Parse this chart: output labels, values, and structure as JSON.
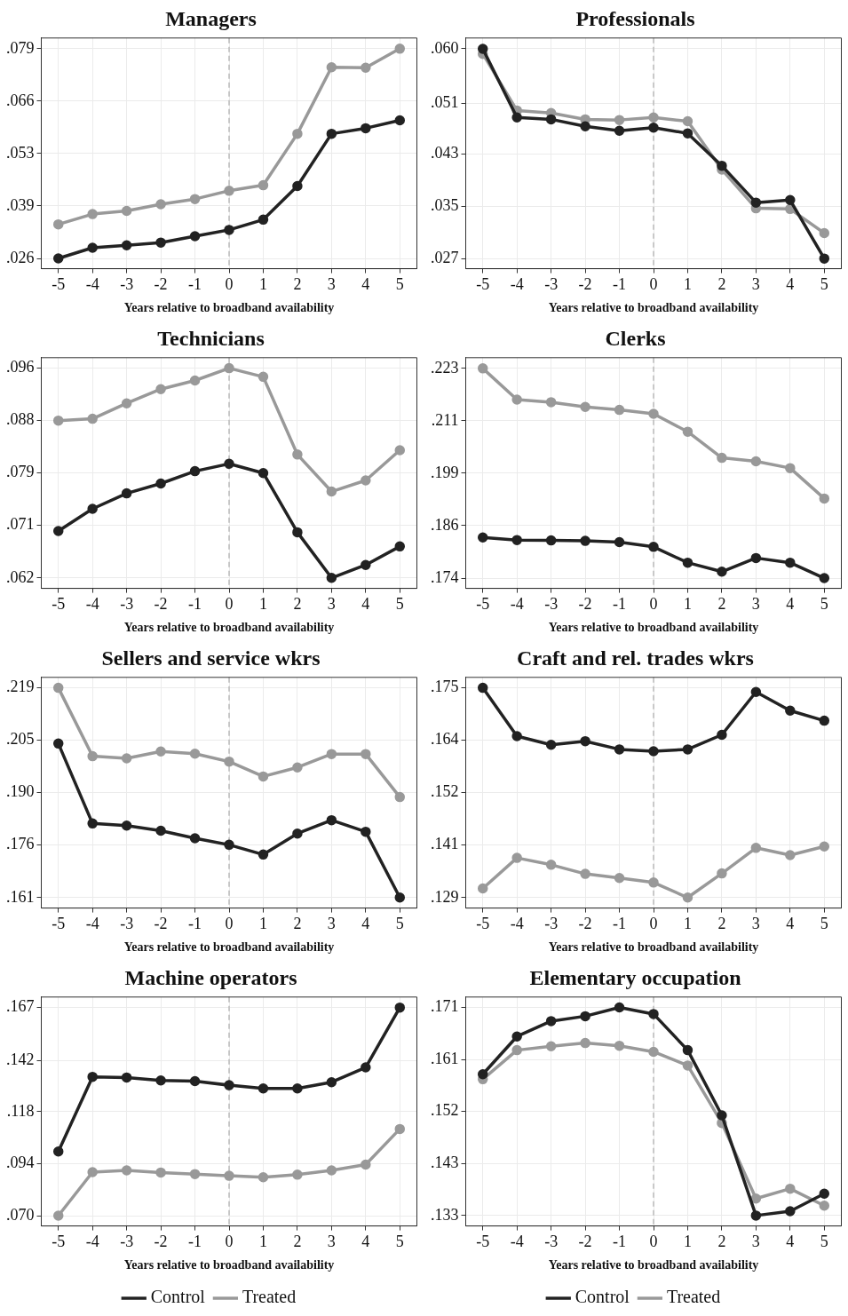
{
  "chart_data": [
    {
      "type": "line",
      "title": "Managers",
      "xlabel": "Years relative to broadband availability",
      "x": [
        -5,
        -4,
        -3,
        -2,
        -1,
        0,
        1,
        2,
        3,
        4,
        5
      ],
      "xlim": [
        -5.5,
        5.5
      ],
      "xticks": [
        -5,
        -4,
        -3,
        -2,
        -1,
        0,
        1,
        2,
        3,
        4,
        5
      ],
      "ylim": [
        0.0234,
        0.0817
      ],
      "yticks": [
        {
          "value": 0.026,
          "label": ".026"
        },
        {
          "value": 0.03925,
          "label": ".039"
        },
        {
          "value": 0.0525,
          "label": ".053"
        },
        {
          "value": 0.06575,
          "label": ".066"
        },
        {
          "value": 0.079,
          "label": ".079"
        }
      ],
      "grid": true,
      "marker": "circle",
      "legend": false,
      "ref_lines": [
        {
          "axis": "x",
          "value": 0,
          "color": "#bbbbbb",
          "line_style": "dashed"
        }
      ],
      "series": [
        {
          "color": "#222222",
          "values": [
            0.026,
            0.0287,
            0.0293,
            0.03,
            0.0316,
            0.0332,
            0.0358,
            0.0443,
            0.0575,
            0.0589,
            0.0609
          ]
        },
        {
          "color": "#999999",
          "values": [
            0.0346,
            0.0372,
            0.038,
            0.0397,
            0.041,
            0.0431,
            0.0445,
            0.0575,
            0.0743,
            0.0742,
            0.079
          ]
        }
      ]
    },
    {
      "type": "line",
      "title": "Professionals",
      "xlabel": "Years relative to broadband availability",
      "x": [
        -5,
        -4,
        -3,
        -2,
        -1,
        0,
        1,
        2,
        3,
        4,
        5
      ],
      "xlim": [
        -5.5,
        5.5
      ],
      "xticks": [
        -5,
        -4,
        -3,
        -2,
        -1,
        0,
        1,
        2,
        3,
        4,
        5
      ],
      "ylim": [
        0.0254,
        0.0617
      ],
      "yticks": [
        {
          "value": 0.027,
          "label": ".027"
        },
        {
          "value": 0.03525,
          "label": ".035"
        },
        {
          "value": 0.0435,
          "label": ".043"
        },
        {
          "value": 0.0514,
          "label": ".051"
        },
        {
          "value": 0.06,
          "label": ".060"
        }
      ],
      "grid": true,
      "marker": "circle",
      "legend": false,
      "ref_lines": [
        {
          "axis": "x",
          "value": 0,
          "color": "#bbbbbb",
          "line_style": "dashed"
        }
      ],
      "series": [
        {
          "color": "#222222",
          "values": [
            0.06,
            0.0492,
            0.0489,
            0.0478,
            0.0471,
            0.0476,
            0.0467,
            0.0416,
            0.0358,
            0.0362,
            0.027
          ]
        },
        {
          "color": "#999999",
          "values": [
            0.0592,
            0.0503,
            0.0499,
            0.0489,
            0.0488,
            0.0492,
            0.0486,
            0.041,
            0.0349,
            0.0348,
            0.031
          ]
        }
      ]
    },
    {
      "type": "line",
      "title": "Technicians",
      "xlabel": "Years relative to broadband availability",
      "x": [
        -5,
        -4,
        -3,
        -2,
        -1,
        0,
        1,
        2,
        3,
        4,
        5
      ],
      "xlim": [
        -5.5,
        5.5
      ],
      "xticks": [
        -5,
        -4,
        -3,
        -2,
        -1,
        0,
        1,
        2,
        3,
        4,
        5
      ],
      "ylim": [
        0.0603,
        0.0977
      ],
      "yticks": [
        {
          "value": 0.062,
          "label": ".062"
        },
        {
          "value": 0.0705,
          "label": ".071"
        },
        {
          "value": 0.079,
          "label": ".079"
        },
        {
          "value": 0.0875,
          "label": ".088"
        },
        {
          "value": 0.096,
          "label": ".096"
        }
      ],
      "grid": true,
      "marker": "circle",
      "legend": false,
      "ref_lines": [
        {
          "axis": "x",
          "value": 0,
          "color": "#bbbbbb",
          "line_style": "dashed"
        }
      ],
      "series": [
        {
          "color": "#222222",
          "values": [
            0.0696,
            0.0732,
            0.0757,
            0.0773,
            0.0793,
            0.0805,
            0.079,
            0.0694,
            0.062,
            0.0641,
            0.0671
          ]
        },
        {
          "color": "#999999",
          "values": [
            0.0875,
            0.0878,
            0.0903,
            0.0926,
            0.094,
            0.096,
            0.0946,
            0.082,
            0.076,
            0.0778,
            0.0827
          ]
        }
      ]
    },
    {
      "type": "line",
      "title": "Clerks",
      "xlabel": "Years relative to broadband availability",
      "x": [
        -5,
        -4,
        -3,
        -2,
        -1,
        0,
        1,
        2,
        3,
        4,
        5
      ],
      "xlim": [
        -5.5,
        5.5
      ],
      "xticks": [
        -5,
        -4,
        -3,
        -2,
        -1,
        0,
        1,
        2,
        3,
        4,
        5
      ],
      "ylim": [
        0.1716,
        0.2255
      ],
      "yticks": [
        {
          "value": 0.174,
          "label": ".174"
        },
        {
          "value": 0.18625,
          "label": ".186"
        },
        {
          "value": 0.1985,
          "label": ".199"
        },
        {
          "value": 0.21075,
          "label": ".211"
        },
        {
          "value": 0.223,
          "label": ".223"
        }
      ],
      "grid": true,
      "marker": "circle",
      "legend": false,
      "ref_lines": [
        {
          "axis": "x",
          "value": 0,
          "color": "#bbbbbb",
          "line_style": "dashed"
        }
      ],
      "series": [
        {
          "color": "#222222",
          "values": [
            0.1835,
            0.1829,
            0.1828,
            0.1827,
            0.1824,
            0.1813,
            0.1776,
            0.1755,
            0.1787,
            0.1776,
            0.174
          ]
        },
        {
          "color": "#999999",
          "values": [
            0.223,
            0.2157,
            0.2151,
            0.214,
            0.2133,
            0.2124,
            0.2082,
            0.2021,
            0.2013,
            0.1997,
            0.1926
          ]
        }
      ]
    },
    {
      "type": "line",
      "title": "Sellers and service wkrs",
      "xlabel": "Years relative to broadband availability",
      "x": [
        -5,
        -4,
        -3,
        -2,
        -1,
        0,
        1,
        2,
        3,
        4,
        5
      ],
      "xlim": [
        -5.5,
        5.5
      ],
      "xticks": [
        -5,
        -4,
        -3,
        -2,
        -1,
        0,
        1,
        2,
        3,
        4,
        5
      ],
      "ylim": [
        0.1581,
        0.2219
      ],
      "yticks": [
        {
          "value": 0.161,
          "label": ".161"
        },
        {
          "value": 0.1755,
          "label": ".176"
        },
        {
          "value": 0.19,
          "label": ".190"
        },
        {
          "value": 0.2045,
          "label": ".205"
        },
        {
          "value": 0.219,
          "label": ".219"
        }
      ],
      "grid": true,
      "marker": "circle",
      "legend": false,
      "ref_lines": [
        {
          "axis": "x",
          "value": 0,
          "color": "#bbbbbb",
          "line_style": "dashed"
        }
      ],
      "series": [
        {
          "color": "#222222",
          "values": [
            0.2036,
            0.1815,
            0.1809,
            0.1795,
            0.1774,
            0.1756,
            0.1729,
            0.1787,
            0.1824,
            0.1792,
            0.161
          ]
        },
        {
          "color": "#999999",
          "values": [
            0.219,
            0.2001,
            0.1995,
            0.2014,
            0.2008,
            0.1986,
            0.1945,
            0.197,
            0.2007,
            0.2007,
            0.1888
          ]
        }
      ]
    },
    {
      "type": "line",
      "title": "Craft and rel. trades wkrs",
      "xlabel": "Years relative to broadband availability",
      "x": [
        -5,
        -4,
        -3,
        -2,
        -1,
        0,
        1,
        2,
        3,
        4,
        5
      ],
      "xlim": [
        -5.5,
        5.5
      ],
      "xticks": [
        -5,
        -4,
        -3,
        -2,
        -1,
        0,
        1,
        2,
        3,
        4,
        5
      ],
      "ylim": [
        0.1267,
        0.1773
      ],
      "yticks": [
        {
          "value": 0.129,
          "label": ".129"
        },
        {
          "value": 0.1405,
          "label": ".141"
        },
        {
          "value": 0.152,
          "label": ".152"
        },
        {
          "value": 0.1635,
          "label": ".164"
        },
        {
          "value": 0.175,
          "label": ".175"
        }
      ],
      "grid": true,
      "marker": "circle",
      "legend": false,
      "ref_lines": [
        {
          "axis": "x",
          "value": 0,
          "color": "#bbbbbb",
          "line_style": "dashed"
        }
      ],
      "series": [
        {
          "color": "#222222",
          "values": [
            0.175,
            0.1644,
            0.1625,
            0.1633,
            0.1615,
            0.1611,
            0.1615,
            0.1647,
            0.1741,
            0.17,
            0.1678
          ]
        },
        {
          "color": "#999999",
          "values": [
            0.131,
            0.1377,
            0.1362,
            0.1342,
            0.1333,
            0.1323,
            0.129,
            0.1343,
            0.1399,
            0.1383,
            0.1402
          ]
        }
      ]
    },
    {
      "type": "line",
      "title": "Machine operators",
      "xlabel": "Years relative to broadband availability",
      "x": [
        -5,
        -4,
        -3,
        -2,
        -1,
        0,
        1,
        2,
        3,
        4,
        5
      ],
      "xlim": [
        -5.5,
        5.5
      ],
      "xticks": [
        -5,
        -4,
        -3,
        -2,
        -1,
        0,
        1,
        2,
        3,
        4,
        5
      ],
      "ylim": [
        0.0652,
        0.1719
      ],
      "yticks": [
        {
          "value": 0.07,
          "label": ".070"
        },
        {
          "value": 0.09425,
          "label": ".094"
        },
        {
          "value": 0.1185,
          "label": ".118"
        },
        {
          "value": 0.1424,
          "label": ".142"
        },
        {
          "value": 0.167,
          "label": ".167"
        }
      ],
      "grid": true,
      "marker": "circle",
      "legend": "bottom",
      "ref_lines": [
        {
          "axis": "x",
          "value": 0,
          "color": "#bbbbbb",
          "line_style": "dashed"
        }
      ],
      "series": [
        {
          "name": "Control",
          "color": "#222222",
          "values": [
            0.0999,
            0.1347,
            0.1344,
            0.133,
            0.1327,
            0.1308,
            0.1293,
            0.1293,
            0.1322,
            0.1391,
            0.167
          ]
        },
        {
          "name": "Treated",
          "color": "#999999",
          "values": [
            0.07,
            0.0903,
            0.0911,
            0.0901,
            0.0894,
            0.0886,
            0.0879,
            0.0891,
            0.0911,
            0.0938,
            0.1104
          ]
        }
      ]
    },
    {
      "type": "line",
      "title": "Elementary occupation",
      "xlabel": "Years relative to broadband availability",
      "x": [
        -5,
        -4,
        -3,
        -2,
        -1,
        0,
        1,
        2,
        3,
        4,
        5
      ],
      "xlim": [
        -5.5,
        5.5
      ],
      "xticks": [
        -5,
        -4,
        -3,
        -2,
        -1,
        0,
        1,
        2,
        3,
        4,
        5
      ],
      "ylim": [
        0.1311,
        0.1729
      ],
      "yticks": [
        {
          "value": 0.133,
          "label": ".133"
        },
        {
          "value": 0.1425,
          "label": ".143"
        },
        {
          "value": 0.152,
          "label": ".152"
        },
        {
          "value": 0.1615,
          "label": ".161"
        },
        {
          "value": 0.171,
          "label": ".171"
        }
      ],
      "grid": true,
      "marker": "circle",
      "legend": "bottom",
      "ref_lines": [
        {
          "axis": "x",
          "value": 0,
          "color": "#bbbbbb",
          "line_style": "dashed"
        }
      ],
      "series": [
        {
          "name": "Control",
          "color": "#222222",
          "values": [
            0.1588,
            0.1657,
            0.1685,
            0.1694,
            0.171,
            0.1698,
            0.1632,
            0.1513,
            0.133,
            0.1338,
            0.137
          ]
        },
        {
          "name": "Treated",
          "color": "#999999",
          "values": [
            0.1579,
            0.1632,
            0.1639,
            0.1645,
            0.164,
            0.1629,
            0.1604,
            0.1499,
            0.1361,
            0.1379,
            0.1348
          ]
        }
      ]
    }
  ]
}
